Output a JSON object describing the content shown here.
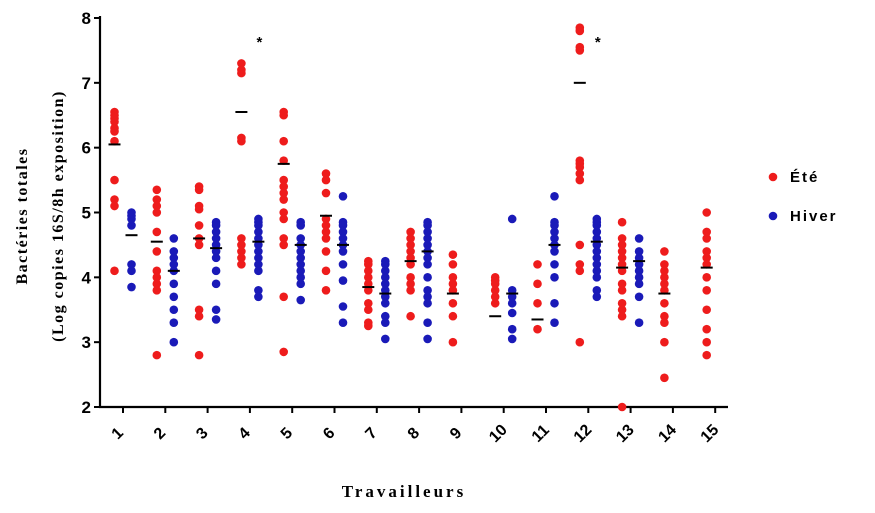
{
  "chart_data": {
    "type": "scatter",
    "ylabel_line1": "Bactéries totales",
    "ylabel_line2": "(Log copies 16S/8h exposition)",
    "xlabel": "Travailleurs",
    "ylim": [
      2,
      8
    ],
    "yticks": [
      "2",
      "3",
      "4",
      "5",
      "6",
      "7",
      "8"
    ],
    "categories": [
      "1",
      "2",
      "3",
      "4",
      "5",
      "6",
      "7",
      "8",
      "9",
      "10",
      "11",
      "12",
      "13",
      "14",
      "15"
    ],
    "annotations": [
      {
        "text": "*",
        "category": "4"
      },
      {
        "text": "*",
        "category": "12"
      }
    ],
    "series": [
      {
        "name": "Été",
        "color": "#ee1c1c",
        "points": [
          [
            6.55,
            6.5,
            6.45,
            6.4,
            6.3,
            6.25,
            6.1,
            5.5,
            5.2,
            5.1,
            4.1
          ],
          [
            5.35,
            5.2,
            5.1,
            5.0,
            4.7,
            4.4,
            4.1,
            4.0,
            3.9,
            3.8,
            2.8
          ],
          [
            5.4,
            5.35,
            5.1,
            5.05,
            4.8,
            4.6,
            4.5,
            3.5,
            3.4,
            2.8
          ],
          [
            7.3,
            7.2,
            7.15,
            6.15,
            6.1,
            4.6,
            4.5,
            4.4,
            4.3,
            4.2
          ],
          [
            6.55,
            6.5,
            6.1,
            5.8,
            5.5,
            5.4,
            5.3,
            5.2,
            5.0,
            4.9,
            4.6,
            4.5,
            3.7,
            2.85
          ],
          [
            5.6,
            5.5,
            5.3,
            4.9,
            4.8,
            4.7,
            4.6,
            4.4,
            4.1,
            3.8
          ],
          [
            4.25,
            4.2,
            4.1,
            4.0,
            3.9,
            3.8,
            3.6,
            3.5,
            3.3,
            3.25
          ],
          [
            4.7,
            4.6,
            4.5,
            4.4,
            4.3,
            4.2,
            4.0,
            3.9,
            3.8,
            3.4
          ],
          [
            4.35,
            4.2,
            4.0,
            3.9,
            3.8,
            3.6,
            3.4,
            3.0
          ],
          [
            4.0,
            3.95,
            3.9,
            3.8,
            3.7,
            3.6
          ],
          [
            4.2,
            3.9,
            3.6,
            3.2
          ],
          [
            7.85,
            7.8,
            7.55,
            7.5,
            5.8,
            5.75,
            5.7,
            5.6,
            5.5,
            4.5,
            4.2,
            4.1,
            3.0
          ],
          [
            4.85,
            4.6,
            4.5,
            4.4,
            4.3,
            4.2,
            4.1,
            3.9,
            3.8,
            3.6,
            3.5,
            3.4,
            2.0
          ],
          [
            4.4,
            4.2,
            4.1,
            4.0,
            3.9,
            3.8,
            3.6,
            3.4,
            3.3,
            3.0,
            2.45
          ],
          [
            5.0,
            4.7,
            4.6,
            4.4,
            4.3,
            4.2,
            4.0,
            3.8,
            3.5,
            3.2,
            3.0,
            2.8
          ]
        ],
        "means": [
          6.05,
          4.55,
          4.6,
          6.55,
          5.75,
          4.95,
          3.85,
          4.25,
          3.75,
          3.4,
          3.35,
          7.0,
          4.15,
          3.75,
          4.15
        ]
      },
      {
        "name": "Hiver",
        "color": "#1a1ab8",
        "points": [
          [
            5.0,
            4.95,
            4.9,
            4.8,
            4.2,
            4.1,
            3.85
          ],
          [
            4.6,
            4.4,
            4.3,
            4.2,
            4.1,
            3.9,
            3.7,
            3.5,
            3.3,
            3.0
          ],
          [
            4.85,
            4.8,
            4.7,
            4.6,
            4.5,
            4.4,
            4.3,
            4.1,
            3.9,
            3.5,
            3.35
          ],
          [
            4.9,
            4.85,
            4.8,
            4.7,
            4.6,
            4.5,
            4.4,
            4.3,
            4.2,
            4.1,
            3.8,
            3.7
          ],
          [
            4.85,
            4.8,
            4.6,
            4.5,
            4.4,
            4.3,
            4.2,
            4.1,
            4.0,
            3.9,
            3.65
          ],
          [
            5.25,
            4.85,
            4.8,
            4.7,
            4.6,
            4.5,
            4.4,
            4.2,
            3.95,
            3.55,
            3.3
          ],
          [
            4.25,
            4.2,
            4.1,
            4.0,
            3.9,
            3.8,
            3.7,
            3.6,
            3.4,
            3.3,
            3.05
          ],
          [
            4.85,
            4.8,
            4.7,
            4.6,
            4.5,
            4.4,
            4.3,
            4.2,
            4.0,
            3.8,
            3.7,
            3.6,
            3.3,
            3.05
          ],
          [],
          [
            4.9,
            3.8,
            3.7,
            3.6,
            3.45,
            3.2,
            3.05
          ],
          [
            5.25,
            4.85,
            4.8,
            4.7,
            4.6,
            4.5,
            4.4,
            4.2,
            4.0,
            3.6,
            3.3
          ],
          [
            4.9,
            4.85,
            4.8,
            4.7,
            4.6,
            4.5,
            4.4,
            4.3,
            4.2,
            4.1,
            4.0,
            3.8,
            3.7
          ],
          [
            4.6,
            4.4,
            4.3,
            4.2,
            4.1,
            4.0,
            3.9,
            3.7,
            3.3
          ],
          [],
          []
        ],
        "means": [
          4.65,
          4.1,
          4.45,
          4.55,
          4.5,
          4.5,
          3.75,
          4.4,
          null,
          3.75,
          4.5,
          4.55,
          4.25,
          null,
          null
        ]
      }
    ],
    "legend": {
      "position": "right"
    }
  }
}
